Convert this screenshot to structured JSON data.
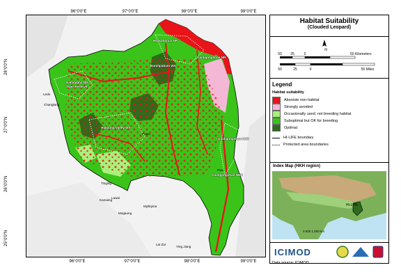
{
  "map": {
    "top_ticks": [
      "96°0'0\"E",
      "97°0'0\"E",
      "98°0'0\"E",
      "99°0'0\"E"
    ],
    "bottom_ticks": [
      "96°0'0\"E",
      "97°0'0\"E",
      "98°0'0\"E",
      "99°0'0\"E"
    ],
    "left_ticks": [
      "28°0'0\"N",
      "27°0'0\"N",
      "26°0'0\"N",
      "25°0'0\"N"
    ],
    "protected_areas": [
      {
        "id": "hkakaborazi",
        "label": "Hkakaborazi NP"
      },
      {
        "id": "gaoligongshan-n",
        "label": "Gaoligongshan NR"
      },
      {
        "id": "bumhpabum",
        "label": "Bumhpabum WS"
      },
      {
        "id": "namdapha",
        "label": "Namdapha NP/ Tiger Reserve"
      },
      {
        "id": "hukaung",
        "label": "Hukaung Valley WS"
      },
      {
        "id": "gaoligongshan-s",
        "label": "Gaoligongshan NNR"
      },
      {
        "id": "gaoligongshan-c",
        "label": "Gaoligongshan NNR"
      }
    ],
    "towns": [
      "Ledo",
      "Changlang",
      "Tinging",
      "Kamaing",
      "Lawai",
      "Mogaung",
      "Myitkyina",
      "Lai Zar",
      "Ying Jiang",
      "Putao",
      "Pian"
    ],
    "colors": {
      "optimal": "#2e6b1a",
      "suboptimal": "#3ac41a",
      "occasional": "#a8f07a",
      "avoided": "#f4b8d6",
      "absolute": "#e8141a"
    }
  },
  "panel": {
    "title": "Habitat Suitability",
    "subtitle": "(Clouded Leopard)",
    "scale": {
      "km_ticks": [
        "50",
        "25",
        "0",
        "50 Kilometers"
      ],
      "mile_ticks": [
        "50",
        "25",
        "0",
        "50 Miles"
      ],
      "north_label": "N"
    },
    "legend": {
      "title": "Legend",
      "subtitle": "Habitat suitability",
      "items": [
        {
          "label": "Absolute non-habitat",
          "color": "#e8141a"
        },
        {
          "label": "Strongly avoided",
          "color": "#f4b8d6"
        },
        {
          "label": "Occasionally used; not breeding habitat",
          "color": "#a8f07a"
        },
        {
          "label": "Suboptimal but OK for breeding",
          "color": "#3ac41a"
        },
        {
          "label": "Optimal",
          "color": "#2e6b1a"
        }
      ],
      "lines": [
        {
          "label": "HI-LIFE boundary",
          "style": "solid"
        },
        {
          "label": "Protected area boundaries",
          "style": "dotted"
        }
      ]
    },
    "index_map": {
      "title": "Index Map (HKH region)",
      "label": "HI-LIFE",
      "scale": "0 500 1,000 km"
    },
    "logo": "ICIMOD",
    "source": "Data source: ICIMOD"
  }
}
